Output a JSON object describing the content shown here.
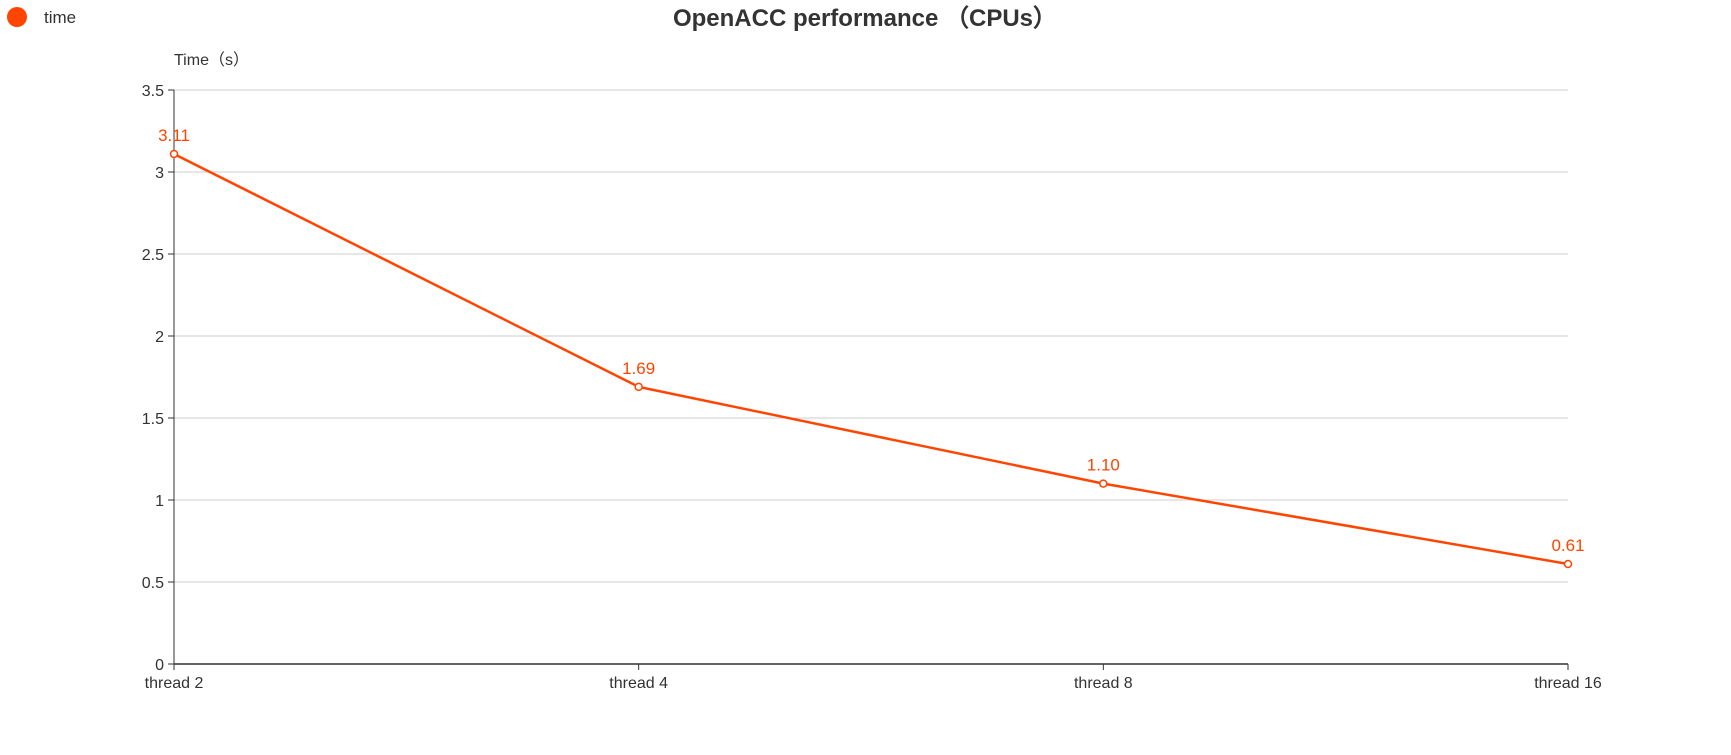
{
  "colors": {
    "series": "#ff4500",
    "axis": "#333333",
    "grid": "#cccccc",
    "text": "#333333",
    "background": "#ffffff"
  },
  "legend": {
    "items": [
      {
        "label": "time",
        "icon": "circle-marker-icon"
      }
    ]
  },
  "chart_data": {
    "type": "line",
    "title": "OpenACC performance （CPUs）",
    "xlabel": "",
    "ylabel": "Time（s）",
    "categories": [
      "thread 2",
      "thread 4",
      "thread 8",
      "thread 16"
    ],
    "series": [
      {
        "name": "time",
        "values": [
          3.11,
          1.69,
          1.1,
          0.61
        ],
        "data_labels": [
          "3.11",
          "1.69",
          "1.10",
          "0.61"
        ]
      }
    ],
    "ylim": [
      0,
      3.5
    ],
    "yticks": [
      0,
      0.5,
      1,
      1.5,
      2,
      2.5,
      3,
      3.5
    ],
    "ytick_labels": [
      "0",
      "0.5",
      "1",
      "1.5",
      "2",
      "2.5",
      "3",
      "3.5"
    ],
    "grid": true,
    "legend_position": "top-left"
  }
}
